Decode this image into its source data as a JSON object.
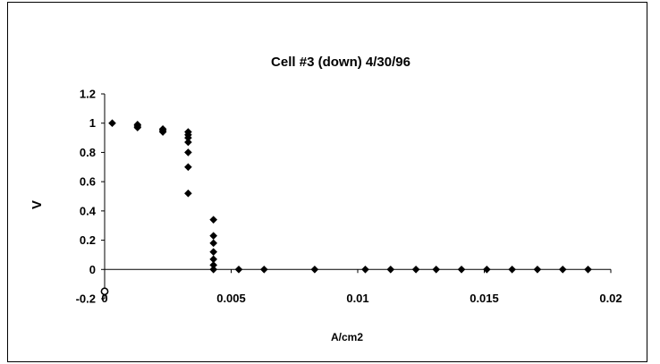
{
  "chart_data": {
    "type": "scatter",
    "title": "Cell #3 (down) 4/30/96",
    "xlabel": "A/cm2",
    "ylabel": "V",
    "xlim": [
      0,
      0.02
    ],
    "ylim": [
      -0.2,
      1.2
    ],
    "x_ticks": [
      "0",
      "0.005",
      "0.01",
      "0.015",
      "0.02"
    ],
    "y_ticks": [
      "-0.2",
      "0",
      "0.2",
      "0.4",
      "0.6",
      "0.8",
      "1",
      "1.2"
    ],
    "grid": false,
    "legend": "none",
    "marker_color": "#000000",
    "series": [
      {
        "marker": "diamond",
        "points": [
          {
            "x": 0.0003,
            "y": 1.0
          },
          {
            "x": 0.0013,
            "y": 0.99
          },
          {
            "x": 0.0013,
            "y": 0.98
          },
          {
            "x": 0.0013,
            "y": 0.97
          },
          {
            "x": 0.0023,
            "y": 0.96
          },
          {
            "x": 0.0023,
            "y": 0.95
          },
          {
            "x": 0.0023,
            "y": 0.94
          },
          {
            "x": 0.0033,
            "y": 0.94
          },
          {
            "x": 0.0033,
            "y": 0.92
          },
          {
            "x": 0.0033,
            "y": 0.9
          },
          {
            "x": 0.0033,
            "y": 0.87
          },
          {
            "x": 0.0033,
            "y": 0.8
          },
          {
            "x": 0.0033,
            "y": 0.7
          },
          {
            "x": 0.0033,
            "y": 0.52
          },
          {
            "x": 0.0043,
            "y": 0.34
          },
          {
            "x": 0.0043,
            "y": 0.23
          },
          {
            "x": 0.0043,
            "y": 0.18
          },
          {
            "x": 0.0043,
            "y": 0.12
          },
          {
            "x": 0.0043,
            "y": 0.07
          },
          {
            "x": 0.0043,
            "y": 0.03
          },
          {
            "x": 0.0043,
            "y": 0.0
          },
          {
            "x": 0.0053,
            "y": 0.0
          },
          {
            "x": 0.0063,
            "y": 0.0
          },
          {
            "x": 0.0083,
            "y": 0.0
          },
          {
            "x": 0.0103,
            "y": 0.0
          },
          {
            "x": 0.0113,
            "y": 0.0
          },
          {
            "x": 0.0123,
            "y": 0.0
          },
          {
            "x": 0.0131,
            "y": 0.0
          },
          {
            "x": 0.0141,
            "y": 0.0
          },
          {
            "x": 0.0151,
            "y": 0.0
          },
          {
            "x": 0.0161,
            "y": 0.0
          },
          {
            "x": 0.0171,
            "y": 0.0
          },
          {
            "x": 0.0181,
            "y": 0.0
          },
          {
            "x": 0.0191,
            "y": 0.0
          }
        ]
      },
      {
        "marker": "open-circle",
        "points": [
          {
            "x": 0.0,
            "y": -0.15
          }
        ]
      }
    ]
  }
}
